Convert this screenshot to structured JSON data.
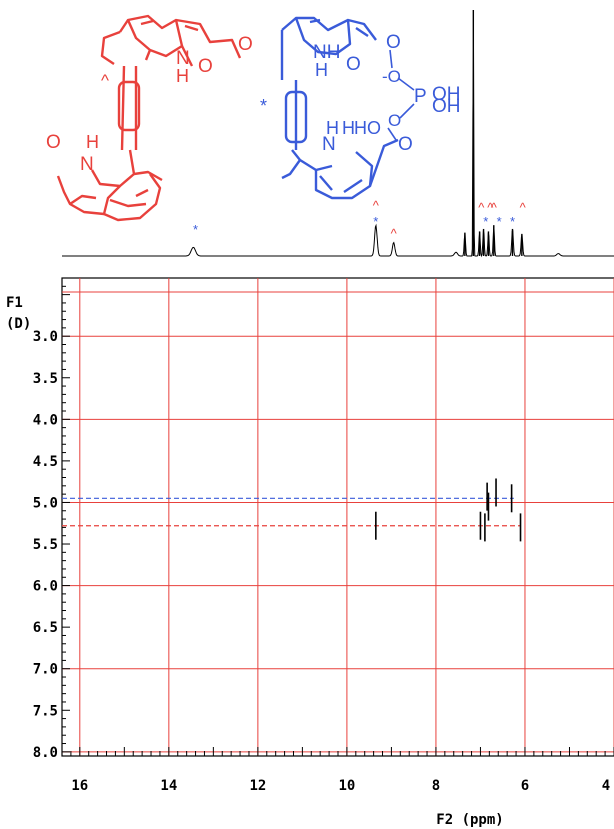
{
  "chart_data": {
    "type": "scatter",
    "subtype": "2D NMR (DOSY) contour plot with 1D 1H NMR projection",
    "xlabel": "F2 (ppm)",
    "ylabel_line1": "F1",
    "ylabel_line2": "(D)",
    "xlim": [
      16.4,
      4.0
    ],
    "x_reversed": true,
    "ylim": [
      2.3,
      8.05
    ],
    "y_inverted": true,
    "x_ticks": [
      16,
      14,
      12,
      10,
      8,
      6,
      4
    ],
    "x_tick_labels": [
      "16",
      "14",
      "12",
      "10",
      "8",
      "6",
      "4"
    ],
    "y_ticks": [
      3.0,
      3.5,
      4.0,
      4.5,
      5.0,
      5.5,
      6.0,
      6.5,
      7.0,
      7.5,
      8.0
    ],
    "y_tick_labels": [
      "3.0",
      "3.5",
      "4.0",
      "4.5",
      "5.0",
      "5.5",
      "6.0",
      "6.5",
      "7.0",
      "7.5",
      "8.0"
    ],
    "grid": true,
    "grid_color": "#e8413c",
    "guide_lines": [
      {
        "y": 4.95,
        "color": "#3a5bd9",
        "style": "dashed"
      },
      {
        "y": 5.28,
        "color": "#e8413c",
        "style": "dashed"
      }
    ],
    "series": [
      {
        "color": "#3a5bd9",
        "points": [
          {
            "x": 6.85,
            "y": 4.93
          },
          {
            "x": 6.65,
            "y": 4.88
          },
          {
            "x": 6.3,
            "y": 4.95
          },
          {
            "x": 6.82,
            "y": 5.05
          }
        ]
      },
      {
        "color": "#e8413c",
        "points": [
          {
            "x": 9.35,
            "y": 5.28
          },
          {
            "x": 7.0,
            "y": 5.28
          },
          {
            "x": 6.9,
            "y": 5.3
          },
          {
            "x": 6.1,
            "y": 5.3
          }
        ]
      }
    ],
    "spectrum_1d": {
      "peaks": [
        {
          "x": 13.45,
          "h": 0.035,
          "w": 0.07
        },
        {
          "x": 9.35,
          "h": 0.125,
          "w": 0.04
        },
        {
          "x": 8.95,
          "h": 0.055,
          "w": 0.04
        },
        {
          "x": 7.55,
          "h": 0.015,
          "w": 0.05
        },
        {
          "x": 7.35,
          "h": 0.095,
          "w": 0.02
        },
        {
          "x": 7.16,
          "h": 1.0,
          "w": 0.012
        },
        {
          "x": 7.02,
          "h": 0.1,
          "w": 0.02
        },
        {
          "x": 6.93,
          "h": 0.11,
          "w": 0.02
        },
        {
          "x": 6.82,
          "h": 0.1,
          "w": 0.02
        },
        {
          "x": 6.7,
          "h": 0.125,
          "w": 0.02
        },
        {
          "x": 6.28,
          "h": 0.11,
          "w": 0.025
        },
        {
          "x": 6.07,
          "h": 0.09,
          "w": 0.025
        },
        {
          "x": 5.25,
          "h": 0.01,
          "w": 0.05
        }
      ],
      "markers": [
        {
          "x": 13.4,
          "symbol": "*",
          "color": "#3a5bd9"
        },
        {
          "x": 9.35,
          "symbol": "^",
          "color": "#e8413c"
        },
        {
          "x": 9.35,
          "symbol": "*",
          "color": "#3a5bd9"
        },
        {
          "x": 8.95,
          "symbol": "^",
          "color": "#e8413c"
        },
        {
          "x": 6.98,
          "symbol": "^",
          "color": "#e8413c"
        },
        {
          "x": 6.88,
          "symbol": "*",
          "color": "#3a5bd9"
        },
        {
          "x": 6.78,
          "symbol": "^",
          "color": "#e8413c"
        },
        {
          "x": 6.7,
          "symbol": "^",
          "color": "#e8413c"
        },
        {
          "x": 6.58,
          "symbol": "*",
          "color": "#3a5bd9"
        },
        {
          "x": 6.28,
          "symbol": "*",
          "color": "#3a5bd9"
        },
        {
          "x": 6.05,
          "symbol": "^",
          "color": "#e8413c"
        }
      ]
    }
  },
  "structures": {
    "red": {
      "color": "#e8413c",
      "marker": "^",
      "labels": [
        "N",
        "H",
        "O",
        "H",
        "N",
        "O",
        "O"
      ]
    },
    "blue": {
      "color": "#3a5bd9",
      "marker": "*",
      "labels": [
        "NH",
        "H",
        "O",
        "O",
        "-O",
        "P",
        "OH",
        "O",
        "OH",
        "H",
        "N",
        "H",
        "HO",
        "O"
      ]
    }
  }
}
